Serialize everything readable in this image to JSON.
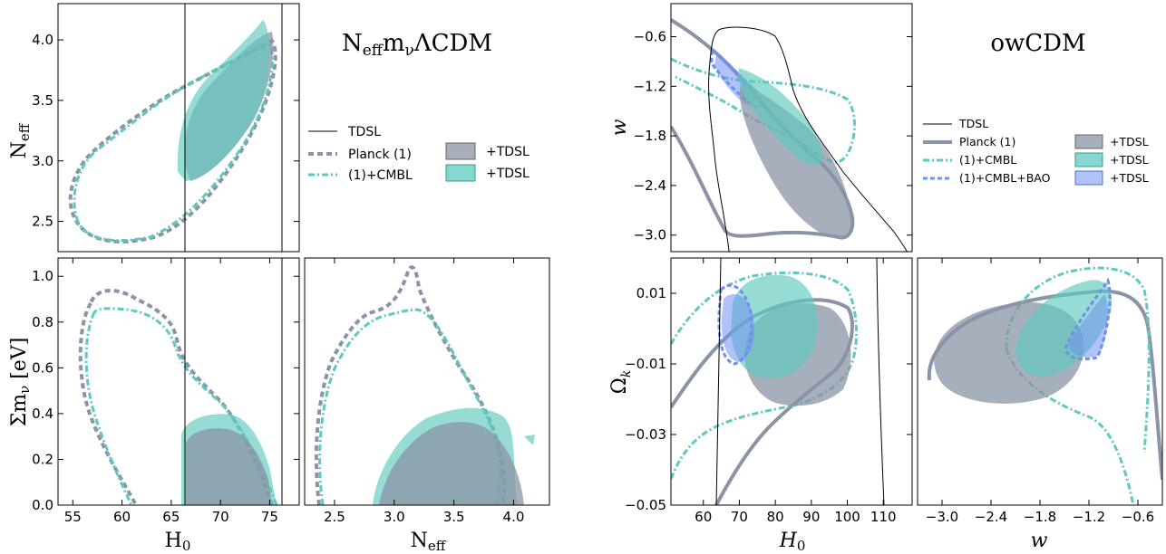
{
  "colors": {
    "grey": "#8a94a6",
    "teal": "#5ec9bf",
    "blue": "#6f8ff0",
    "black": "#000000"
  },
  "chart_data": [
    {
      "type": "contour",
      "title": "N_eff m_ν ΛCDM",
      "panels": [
        {
          "xlabel": "",
          "ylabel": "N_eff",
          "xlim": [
            53.5,
            78
          ],
          "ylim": [
            2.25,
            4.3
          ],
          "xticks": [
            55,
            60,
            65,
            70,
            75
          ],
          "yticks": [
            2.5,
            3.0,
            3.5,
            4.0
          ],
          "yticklabels": [
            "2.5",
            "3.0",
            "3.5",
            "4.0"
          ]
        },
        {
          "xlabel": "H_0",
          "ylabel": "Σm_ν [eV]",
          "xlim": [
            53.5,
            78
          ],
          "ylim": [
            0,
            1.08
          ],
          "xticks": [
            55,
            60,
            65,
            70,
            75
          ],
          "yticks": [
            0.0,
            0.2,
            0.4,
            0.6,
            0.8,
            1.0
          ],
          "yticklabels": [
            "0.0",
            "0.2",
            "0.4",
            "0.6",
            "0.8",
            "1.0"
          ]
        },
        {
          "xlabel": "N_eff",
          "ylabel": "",
          "xlim": [
            2.25,
            4.3
          ],
          "ylim": [
            0,
            1.08
          ],
          "xticks": [
            2.5,
            3.0,
            3.5,
            4.0
          ],
          "xticklabels": [
            "2.5",
            "3.0",
            "3.5",
            "4.0"
          ]
        }
      ],
      "tdsl_h0_lines": [
        66.6,
        76.9
      ],
      "legend": [
        {
          "label": "TDSL",
          "style": "solid-thin"
        },
        {
          "label": "Planck (1)",
          "style": "dashed-grey"
        },
        {
          "label": "(1)+CMBL",
          "style": "dashdot-teal"
        },
        {
          "label": "+TDSL",
          "style": "fill-grey"
        },
        {
          "label": "+TDSL",
          "style": "fill-teal"
        }
      ],
      "title_parts": {
        "a": "N",
        "b": "eff",
        "c": "m",
        "d": "ν",
        "e": "ΛCDM"
      },
      "ylabel_parts": {
        "n": "N",
        "eff": "eff",
        "sm": "Σm",
        "nu": "ν",
        "ev": " [eV]",
        "h": "H",
        "h0": "0"
      }
    },
    {
      "type": "contour",
      "title": "owCDM",
      "panels": [
        {
          "xlabel": "",
          "ylabel": "w",
          "xlim": [
            51,
            118
          ],
          "ylim": [
            -3.2,
            -0.2
          ],
          "yticks": [
            -3.0,
            -2.4,
            -1.8,
            -1.2,
            -0.6
          ],
          "yticklabels": [
            "−3.0",
            "−2.4",
            "−1.8",
            "−1.2",
            "−0.6"
          ]
        },
        {
          "xlabel": "H_0",
          "ylabel": "Ω_k",
          "xlim": [
            51,
            118
          ],
          "ylim": [
            -0.05,
            0.02
          ],
          "xticks": [
            60,
            70,
            80,
            90,
            100,
            110
          ],
          "yticks": [
            -0.05,
            -0.03,
            -0.01,
            0.01
          ],
          "yticklabels": [
            "−0.05",
            "−0.03",
            "−0.01",
            "0.01"
          ]
        },
        {
          "xlabel": "w",
          "ylabel": "",
          "xlim": [
            -3.3,
            -0.3
          ],
          "ylim": [
            -0.05,
            0.02
          ],
          "xticks": [
            -3.0,
            -2.4,
            -1.8,
            -1.2,
            -0.6
          ],
          "xticklabels": [
            "−3.0",
            "−2.4",
            "−1.8",
            "−1.2",
            "−0.6"
          ]
        }
      ],
      "legend": [
        {
          "label": "TDSL",
          "style": "solid-thin"
        },
        {
          "label": "Planck (1)",
          "style": "solid-grey"
        },
        {
          "label": "(1)+CMBL",
          "style": "dashdot-teal"
        },
        {
          "label": "(1)+CMBL+BAO",
          "style": "dashed-blue"
        },
        {
          "label": "+TDSL",
          "style": "fill-grey"
        },
        {
          "label": "+TDSL",
          "style": "fill-teal"
        },
        {
          "label": "+TDSL",
          "style": "fill-blue"
        }
      ]
    }
  ]
}
